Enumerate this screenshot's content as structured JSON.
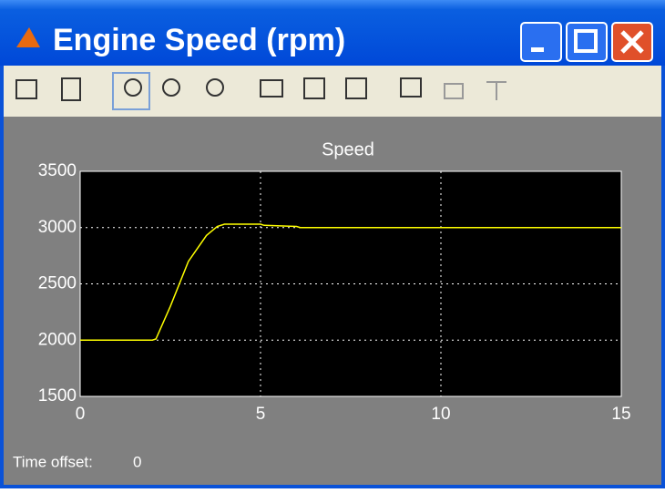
{
  "window": {
    "title": "Engine Speed (rpm)"
  },
  "chart_data": {
    "type": "line",
    "title": "Speed",
    "x": [
      0,
      2,
      2.1,
      2.5,
      3,
      3.5,
      3.8,
      4,
      5,
      5.1,
      6,
      6.1,
      15
    ],
    "values": [
      2000,
      2000,
      2010,
      2300,
      2700,
      2930,
      3010,
      3030,
      3030,
      3020,
      3010,
      3000,
      3000
    ],
    "color": "#ffff00",
    "xlim": [
      0,
      15
    ],
    "xticks": [
      0,
      5,
      10,
      15
    ],
    "ylim": [
      1500,
      3500
    ],
    "yticks": [
      1500,
      2000,
      2500,
      3000,
      3500
    ],
    "grid": true
  },
  "status": {
    "label": "Time offset:",
    "value": 0
  }
}
